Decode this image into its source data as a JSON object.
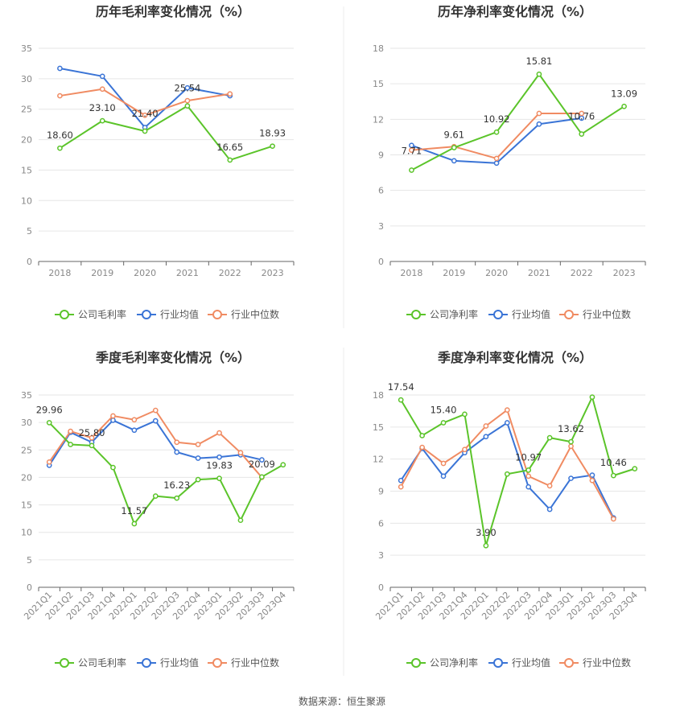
{
  "source": "数据来源：恒生聚源",
  "colors": {
    "company": "#5bc42a",
    "avg": "#3a74d6",
    "median": "#f08b62"
  },
  "charts": [
    {
      "id": "annual_gross",
      "title": "历年毛利率变化情况（%）",
      "legend": [
        "公司毛利率",
        "行业均值",
        "行业中位数"
      ],
      "rotate_labels": false
    },
    {
      "id": "annual_net",
      "title": "历年净利率变化情况（%）",
      "legend": [
        "公司净利率",
        "行业均值",
        "行业中位数"
      ],
      "rotate_labels": false
    },
    {
      "id": "quarter_gross",
      "title": "季度毛利率变化情况（%）",
      "legend": [
        "公司毛利率",
        "行业均值",
        "行业中位数"
      ],
      "rotate_labels": true
    },
    {
      "id": "quarter_net",
      "title": "季度净利率变化情况（%）",
      "legend": [
        "公司净利率",
        "行业均值",
        "行业中位数"
      ],
      "rotate_labels": true
    }
  ],
  "chart_data": [
    {
      "type": "line",
      "title": "历年毛利率变化情况（%）",
      "categories": [
        "2018",
        "2019",
        "2020",
        "2021",
        "2022",
        "2023"
      ],
      "ylim": [
        0,
        35
      ],
      "yticks": [
        0,
        5,
        10,
        15,
        20,
        25,
        30,
        35
      ],
      "series": [
        {
          "name": "公司毛利率",
          "values": [
            18.6,
            23.1,
            21.4,
            25.54,
            16.65,
            18.93
          ],
          "labels": [
            "18.60",
            "23.10",
            "21.40",
            "25.54",
            "16.65",
            "18.93"
          ]
        },
        {
          "name": "行业均值",
          "values": [
            31.7,
            30.4,
            22.0,
            28.5,
            27.2,
            null
          ]
        },
        {
          "name": "行业中位数",
          "values": [
            27.2,
            28.3,
            24.0,
            26.4,
            27.5,
            null
          ]
        }
      ]
    },
    {
      "type": "line",
      "title": "历年净利率变化情况（%）",
      "categories": [
        "2018",
        "2019",
        "2020",
        "2021",
        "2022",
        "2023"
      ],
      "ylim": [
        0,
        18
      ],
      "yticks": [
        0,
        3,
        6,
        9,
        12,
        15,
        18
      ],
      "series": [
        {
          "name": "公司净利率",
          "values": [
            7.71,
            9.61,
            10.92,
            15.81,
            10.76,
            13.09
          ],
          "labels": [
            "7.71",
            "9.61",
            "10.92",
            "15.81",
            "10.76",
            "13.09"
          ]
        },
        {
          "name": "行业均值",
          "values": [
            9.8,
            8.5,
            8.3,
            11.6,
            12.1,
            null
          ]
        },
        {
          "name": "行业中位数",
          "values": [
            9.4,
            9.7,
            8.7,
            12.5,
            12.5,
            null
          ]
        }
      ]
    },
    {
      "type": "line",
      "title": "季度毛利率变化情况（%）",
      "categories": [
        "2021Q1",
        "2021Q2",
        "2021Q3",
        "2021Q4",
        "2022Q1",
        "2022Q2",
        "2022Q3",
        "2022Q4",
        "2023Q1",
        "2023Q2",
        "2023Q3",
        "2023Q4"
      ],
      "ylim": [
        0,
        35
      ],
      "yticks": [
        0,
        5,
        10,
        15,
        20,
        25,
        30,
        35
      ],
      "series": [
        {
          "name": "公司毛利率",
          "values": [
            29.96,
            26.0,
            25.8,
            21.8,
            11.57,
            16.6,
            16.23,
            19.6,
            19.83,
            12.2,
            20.09,
            22.3
          ],
          "labels": [
            "29.96",
            null,
            "25.80",
            null,
            "11.57",
            null,
            "16.23",
            null,
            "19.83",
            null,
            "20.09",
            null
          ]
        },
        {
          "name": "行业均值",
          "values": [
            22.2,
            28.2,
            26.4,
            30.4,
            28.6,
            30.3,
            24.6,
            23.5,
            23.7,
            24.1,
            23.2,
            null
          ]
        },
        {
          "name": "行业中位数",
          "values": [
            22.8,
            28.4,
            27.2,
            31.2,
            30.5,
            32.2,
            26.4,
            26.0,
            28.1,
            24.5,
            20.0,
            null
          ]
        }
      ]
    },
    {
      "type": "line",
      "title": "季度净利率变化情况（%）",
      "categories": [
        "2021Q1",
        "2021Q2",
        "2021Q3",
        "2021Q4",
        "2022Q1",
        "2022Q2",
        "2022Q3",
        "2022Q4",
        "2023Q1",
        "2023Q2",
        "2023Q3",
        "2023Q4"
      ],
      "ylim": [
        0,
        18
      ],
      "yticks": [
        0,
        3,
        6,
        9,
        12,
        15,
        18
      ],
      "series": [
        {
          "name": "公司净利率",
          "values": [
            17.54,
            14.2,
            15.4,
            16.2,
            3.9,
            10.6,
            10.97,
            14.0,
            13.62,
            17.8,
            10.46,
            11.1
          ],
          "labels": [
            "17.54",
            null,
            "15.40",
            null,
            "3.90",
            null,
            "10.97",
            null,
            "13.62",
            null,
            "10.46",
            null
          ]
        },
        {
          "name": "行业均值",
          "values": [
            10.0,
            13.0,
            10.4,
            12.6,
            14.1,
            15.4,
            9.4,
            7.3,
            10.2,
            10.5,
            6.5,
            null
          ]
        },
        {
          "name": "行业中位数",
          "values": [
            9.4,
            13.1,
            11.6,
            12.9,
            15.1,
            16.6,
            10.4,
            9.5,
            13.2,
            10.0,
            6.4,
            null
          ]
        }
      ]
    }
  ]
}
